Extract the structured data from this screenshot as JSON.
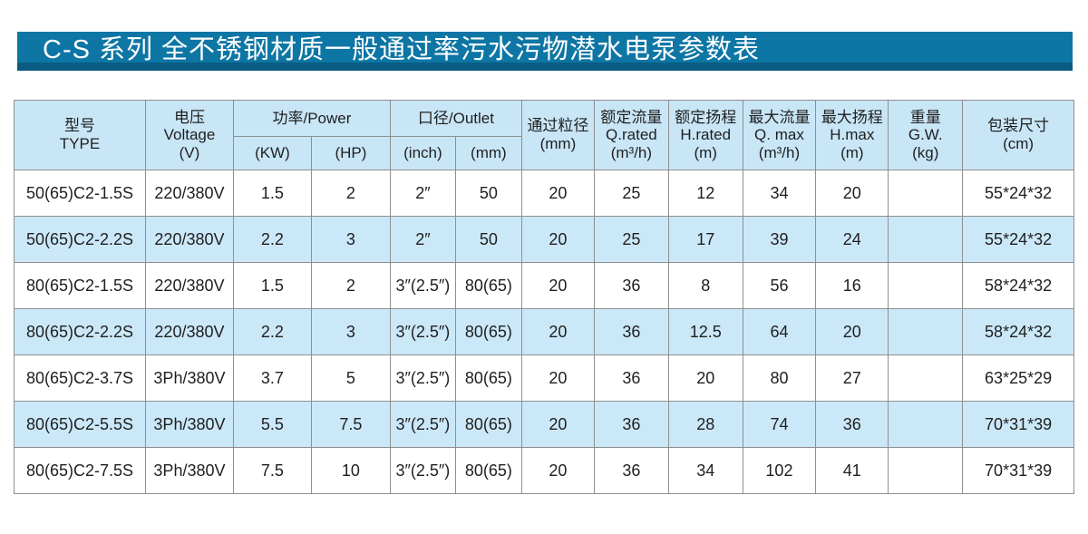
{
  "banner": {
    "title": "C-S 系列 全不锈钢材质一般通过率污水污物潜水电泵参数表"
  },
  "colors": {
    "banner_bg": "#0e76a4",
    "banner_edge": "#0a5c82",
    "header_bg": "#c9e6f7",
    "row_alt_bg": "#cbe8f9",
    "grid_line": "#8f8f8f",
    "title_text": "#ffffff"
  },
  "table": {
    "header": {
      "type_cn": "型号",
      "type_en": "TYPE",
      "voltage_cn": "电压",
      "voltage_en": "Voltage",
      "voltage_unit": "(V)",
      "power_group": "功率/Power",
      "power_kw": "(KW)",
      "power_hp": "(HP)",
      "outlet_group": "口径/Outlet",
      "outlet_inch": "(inch)",
      "outlet_mm": "(mm)",
      "particle_cn": "通过粒径",
      "particle_unit": "(mm)",
      "qrated_cn": "额定流量",
      "qrated_en": "Q.rated",
      "qrated_unit": "(m³/h)",
      "hrated_cn": "额定扬程",
      "hrated_en": "H.rated",
      "hrated_unit": "(m)",
      "qmax_cn": "最大流量",
      "qmax_en": "Q. max",
      "qmax_unit": "(m³/h)",
      "hmax_cn": "最大扬程",
      "hmax_en": "H.max",
      "hmax_unit": "(m)",
      "gw_cn": "重量",
      "gw_en": "G.W.",
      "gw_unit": "(kg)",
      "packing_cn": "包装尺寸",
      "packing_unit": "(cm)"
    },
    "rows": [
      [
        "50(65)C2-1.5S",
        "220/380V",
        "1.5",
        "2",
        "2″",
        "50",
        "20",
        "25",
        "12",
        "34",
        "20",
        "",
        "55*24*32"
      ],
      [
        "50(65)C2-2.2S",
        "220/380V",
        "2.2",
        "3",
        "2″",
        "50",
        "20",
        "25",
        "17",
        "39",
        "24",
        "",
        "55*24*32"
      ],
      [
        "80(65)C2-1.5S",
        "220/380V",
        "1.5",
        "2",
        "3″(2.5″)",
        "80(65)",
        "20",
        "36",
        "8",
        "56",
        "16",
        "",
        "58*24*32"
      ],
      [
        "80(65)C2-2.2S",
        "220/380V",
        "2.2",
        "3",
        "3″(2.5″)",
        "80(65)",
        "20",
        "36",
        "12.5",
        "64",
        "20",
        "",
        "58*24*32"
      ],
      [
        "80(65)C2-3.7S",
        "3Ph/380V",
        "3.7",
        "5",
        "3″(2.5″)",
        "80(65)",
        "20",
        "36",
        "20",
        "80",
        "27",
        "",
        "63*25*29"
      ],
      [
        "80(65)C2-5.5S",
        "3Ph/380V",
        "5.5",
        "7.5",
        "3″(2.5″)",
        "80(65)",
        "20",
        "36",
        "28",
        "74",
        "36",
        "",
        "70*31*39"
      ],
      [
        "80(65)C2-7.5S",
        "3Ph/380V",
        "7.5",
        "10",
        "3″(2.5″)",
        "80(65)",
        "20",
        "36",
        "34",
        "102",
        "41",
        "",
        "70*31*39"
      ]
    ]
  }
}
